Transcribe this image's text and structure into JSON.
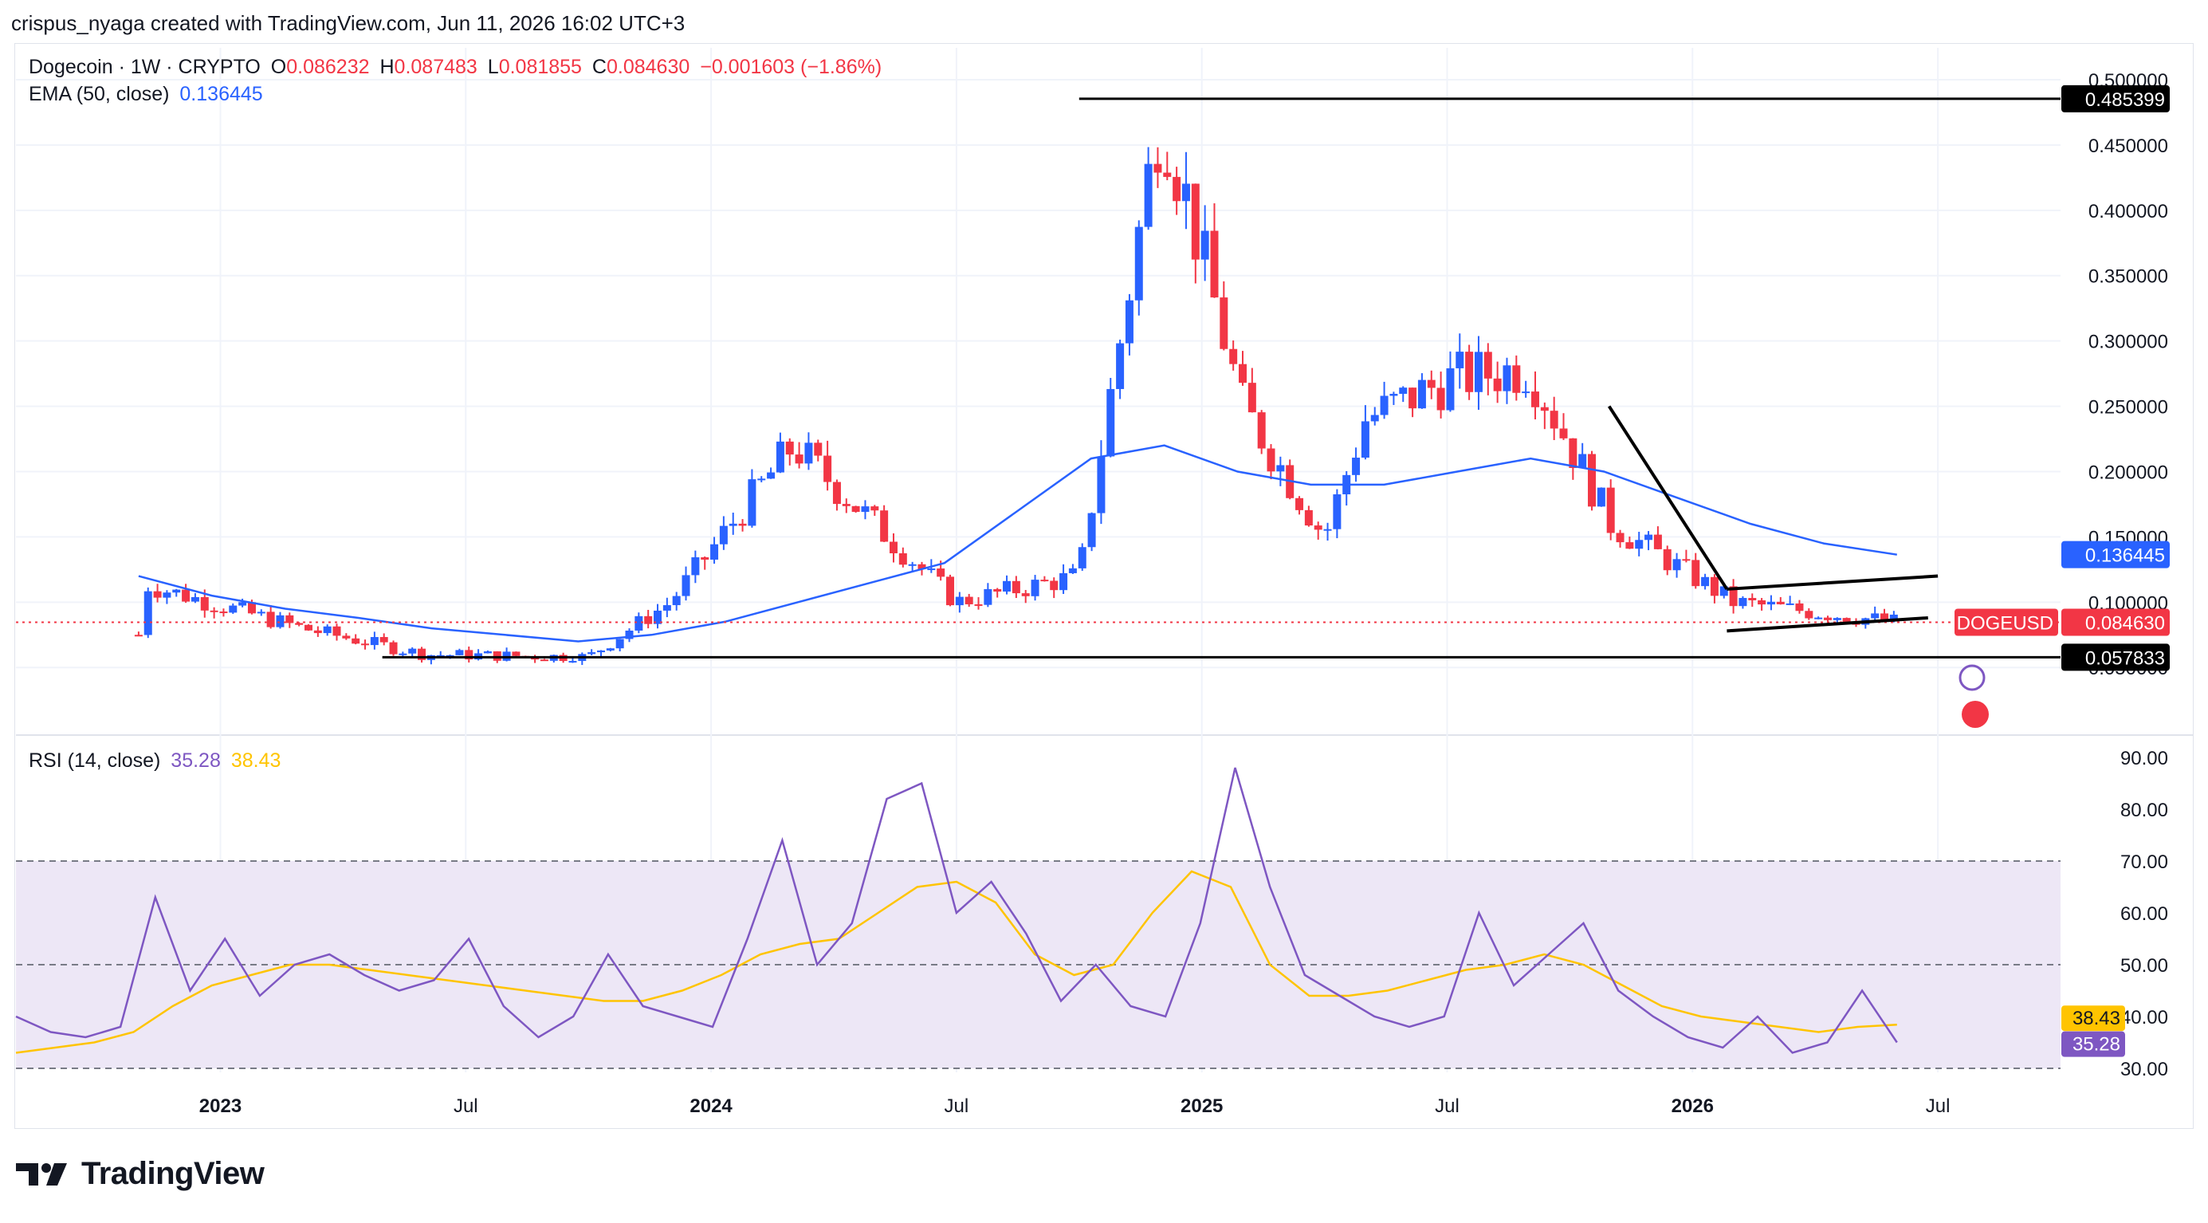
{
  "header": {
    "credit": "crispus_nyaga created with TradingView.com, Jun 11, 2026 16:02 UTC+3"
  },
  "legend": {
    "symbol": "Dogecoin · 1W · CRYPTO",
    "open_label": "O",
    "open": "0.086232",
    "high_label": "H",
    "high": "0.087483",
    "low_label": "L",
    "low": "0.081855",
    "close_label": "C",
    "close": "0.084630",
    "change": "−0.001603 (−1.86%)",
    "ema_label": "EMA (50, close)",
    "ema_value": "0.136445",
    "rsi_label": "RSI (14, close)",
    "rsi_value": "35.28",
    "rsi_ma_value": "38.43"
  },
  "colors": {
    "up": "#2962ff",
    "down": "#f23645",
    "ema": "#2962ff",
    "rsi": "#7e57c2",
    "rsi_ma": "#ffc400",
    "rsi_band": "#ede7f6"
  },
  "chart_data": [
    {
      "type": "candlestick",
      "title": "Dogecoin · 1W · CRYPTO",
      "ylim": [
        0.03,
        0.5
      ],
      "y_ticks": [
        "0.500000",
        "0.450000",
        "0.400000",
        "0.350000",
        "0.300000",
        "0.250000",
        "0.200000",
        "0.150000",
        "0.100000",
        "0.050000"
      ],
      "x_ticks": [
        "2023",
        "Jul",
        "2024",
        "Jul",
        "2025",
        "Jul",
        "2026",
        "Jul"
      ],
      "price_labels": {
        "resistance": "0.485399",
        "ema": "0.136445",
        "symbol": "DOGEUSD",
        "last": "0.084630",
        "support": "0.057833"
      },
      "key_points": [
        {
          "x": "2022-11",
          "y": 0.075
        },
        {
          "x": "2022-11",
          "y": 0.115
        },
        {
          "x": "2023-03",
          "y": 0.08
        },
        {
          "x": "2023-06",
          "y": 0.06
        },
        {
          "x": "2023-10",
          "y": 0.058
        },
        {
          "x": "2023-12",
          "y": 0.1
        },
        {
          "x": "2024-03",
          "y": 0.22
        },
        {
          "x": "2024-07",
          "y": 0.1
        },
        {
          "x": "2024-10",
          "y": 0.12
        },
        {
          "x": "2024-12",
          "y": 0.48
        },
        {
          "x": "2025-02",
          "y": 0.25
        },
        {
          "x": "2025-04",
          "y": 0.15
        },
        {
          "x": "2025-05",
          "y": 0.24
        },
        {
          "x": "2025-07",
          "y": 0.27
        },
        {
          "x": "2025-09",
          "y": 0.28
        },
        {
          "x": "2025-11",
          "y": 0.16
        },
        {
          "x": "2026-02",
          "y": 0.1
        },
        {
          "x": "2026-06",
          "y": 0.0846
        }
      ],
      "ema": [
        0.12,
        0.105,
        0.095,
        0.088,
        0.08,
        0.075,
        0.07,
        0.075,
        0.085,
        0.1,
        0.115,
        0.13,
        0.17,
        0.21,
        0.22,
        0.2,
        0.19,
        0.19,
        0.2,
        0.21,
        0.2,
        0.18,
        0.16,
        0.145,
        0.1364
      ],
      "annotations": [
        "horizontal line at 0.485399",
        "horizontal line at 0.057833",
        "descending trend line",
        "ascending wedge lines"
      ]
    },
    {
      "type": "line",
      "title": "RSI (14, close)",
      "ylim": [
        30,
        90
      ],
      "y_ticks": [
        "90.00",
        "80.00",
        "70.00",
        "60.00",
        "50.00",
        "40.00",
        "30.00"
      ],
      "bands": [
        30,
        50,
        70
      ],
      "series": [
        {
          "name": "RSI",
          "values": [
            40,
            37,
            36,
            38,
            63,
            45,
            55,
            44,
            50,
            52,
            48,
            45,
            47,
            55,
            42,
            36,
            40,
            52,
            42,
            40,
            38,
            55,
            74,
            50,
            58,
            82,
            85,
            60,
            66,
            56,
            43,
            50,
            42,
            40,
            58,
            88,
            65,
            48,
            44,
            40,
            38,
            40,
            60,
            46,
            52,
            58,
            45,
            40,
            36,
            34,
            40,
            33,
            35,
            45,
            35
          ]
        },
        {
          "name": "MA",
          "values": [
            33,
            34,
            35,
            37,
            42,
            46,
            48,
            50,
            50,
            49,
            48,
            47,
            46,
            45,
            44,
            43,
            43,
            45,
            48,
            52,
            54,
            55,
            60,
            65,
            66,
            62,
            52,
            48,
            50,
            60,
            68,
            65,
            50,
            44,
            44,
            45,
            47,
            49,
            50,
            52,
            50,
            46,
            42,
            40,
            39,
            38,
            37,
            38,
            38.43
          ]
        }
      ],
      "last_values": {
        "rsi": "35.28",
        "ma": "38.43"
      }
    }
  ],
  "footer": {
    "brand": "TradingView"
  }
}
